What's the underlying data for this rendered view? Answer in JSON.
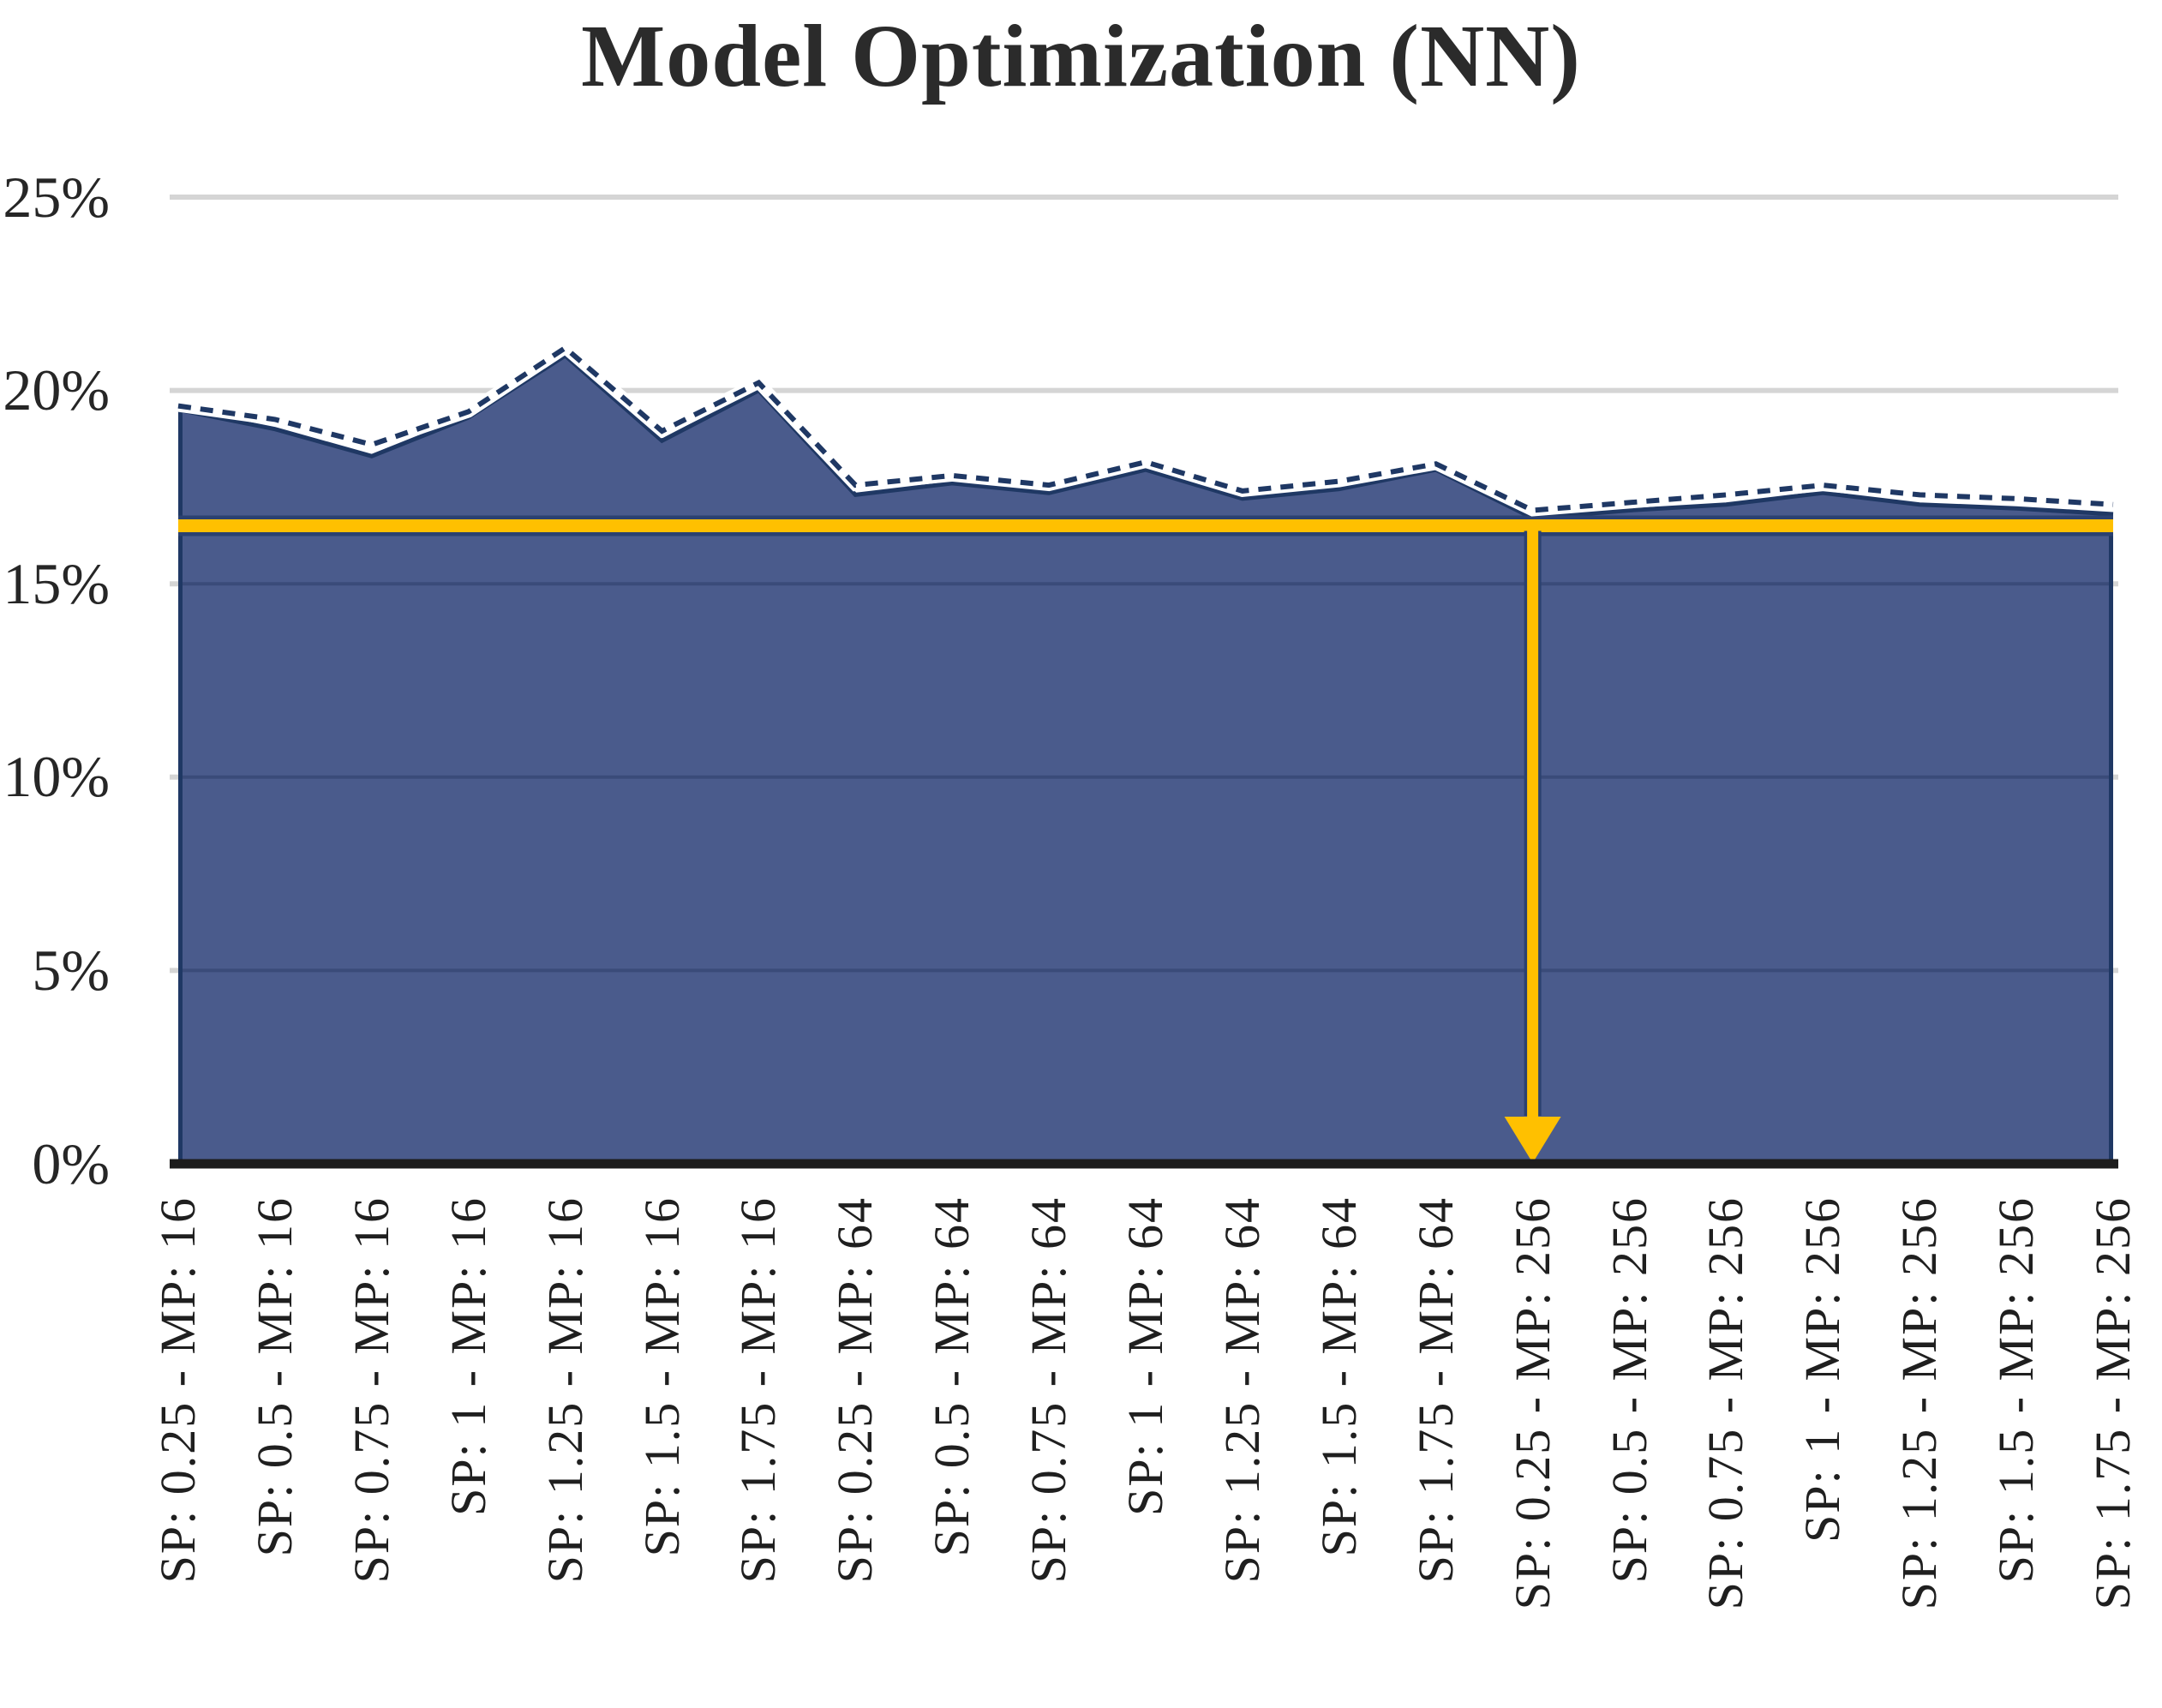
{
  "page": {
    "title": "Model Optimization (NN)"
  },
  "colors": {
    "area_fill": "#4A5B8C",
    "series_line": "#1F3864",
    "threshold_yellow": "#FFC000",
    "threshold_casing": "#2B4170",
    "gridline": "#D5D5D5",
    "inner_gridline": "rgba(24,40,78,0.30)",
    "axis": "#1C1C1C",
    "text": "#262626",
    "background": "#FFFFFF"
  },
  "chart_data": {
    "type": "area",
    "title": "Model Optimization (NN)",
    "categories": [
      "SP: 0.25 - MP: 16",
      "SP: 0.5 - MP: 16",
      "SP: 0.75 - MP: 16",
      "SP: 1 - MP: 16",
      "SP: 1.25 - MP: 16",
      "SP: 1.5 - MP: 16",
      "SP: 1.75 - MP: 16",
      "SP: 0.25 - MP: 64",
      "SP: 0.5 - MP: 64",
      "SP: 0.75 - MP: 64",
      "SP: 1 - MP: 64",
      "SP: 1.25 - MP: 64",
      "SP: 1.5 - MP: 64",
      "SP: 1.75 - MP: 64",
      "SP: 0.25 - MP: 256",
      "SP: 0.5 - MP: 256",
      "SP: 0.75 - MP: 256",
      "SP: 1 - MP: 256",
      "SP: 1.25 - MP: 256",
      "SP: 1.5 - MP: 256",
      "SP: 1.75 - MP: 256"
    ],
    "series": [
      {
        "name": "error-rate-area",
        "style": "solid-area",
        "values": [
          19.5,
          19.0,
          18.3,
          19.3,
          20.9,
          18.7,
          20.0,
          17.3,
          17.6,
          17.35,
          17.95,
          17.2,
          17.45,
          17.95,
          16.7,
          16.9,
          17.05,
          17.35,
          17.05,
          16.95,
          16.8
        ]
      },
      {
        "name": "error-rate-dashed",
        "style": "dashed-line",
        "values": [
          19.6,
          19.25,
          18.6,
          19.45,
          21.1,
          18.95,
          20.2,
          17.55,
          17.8,
          17.55,
          18.15,
          17.4,
          17.65,
          18.1,
          16.9,
          17.1,
          17.3,
          17.55,
          17.3,
          17.2,
          17.05
        ]
      }
    ],
    "xlabel": "",
    "ylabel": "",
    "ylim": [
      0,
      25
    ],
    "yticks": [
      {
        "value": 25,
        "label": "25%"
      },
      {
        "value": 20,
        "label": "20%"
      },
      {
        "value": 15,
        "label": "15%"
      },
      {
        "value": 10,
        "label": "10%"
      },
      {
        "value": 5,
        "label": "5%"
      },
      {
        "value": 0,
        "label": "0%"
      }
    ],
    "grid": "horizontal",
    "legend": "none",
    "annotations": {
      "threshold_line": {
        "orientation": "horizontal",
        "value": 16.5,
        "color": "#FFC000"
      },
      "min_arrow": {
        "category": "SP: 0.25 - MP: 256",
        "category_index": 14,
        "from_value": 16.5,
        "to_value": 0,
        "direction": "down",
        "color": "#FFC000"
      }
    }
  }
}
